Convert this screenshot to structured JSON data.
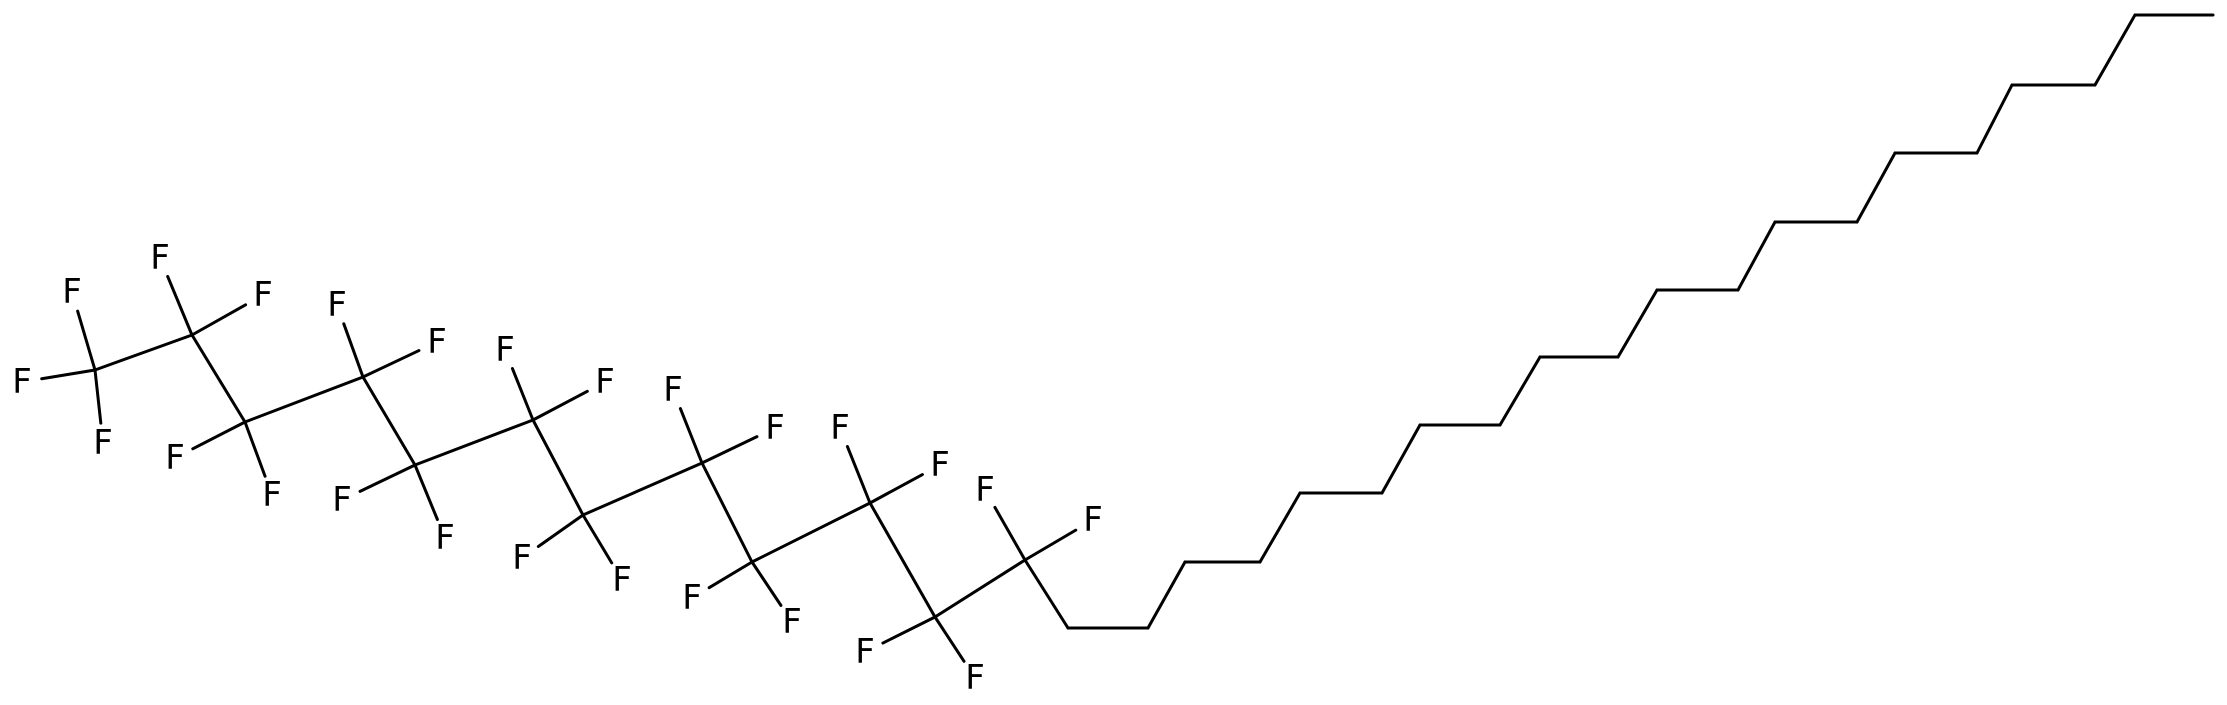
{
  "atom_label": "F",
  "colors": {
    "bond": "#000000",
    "label": "#000000",
    "background": "#ffffff"
  }
}
